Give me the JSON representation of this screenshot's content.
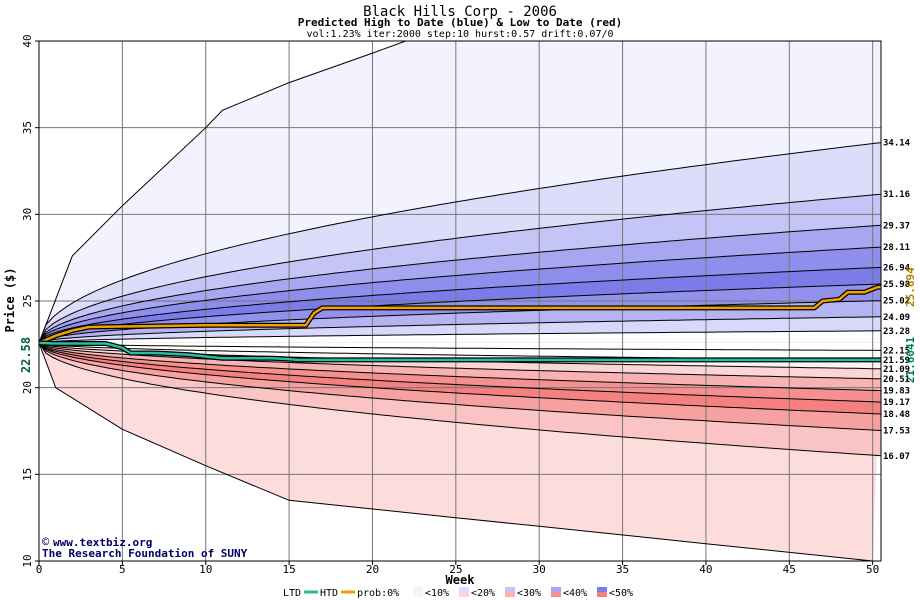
{
  "chart_data": {
    "type": "area",
    "title": "Black Hills Corp - 2006",
    "subtitle": "Predicted High to Date (blue) &  Low to Date (red)",
    "params": "vol:1.23% iter:2000 step:10 hurst:0.57 drift:0.07/0",
    "xlabel": "Week",
    "ylabel": "Price ($)",
    "xlim": [
      0,
      50.5
    ],
    "ylim": [
      10,
      40
    ],
    "x_ticks": [
      0,
      5,
      10,
      15,
      20,
      25,
      30,
      35,
      40,
      45,
      50
    ],
    "y_ticks": [
      10,
      15,
      20,
      25,
      30,
      35,
      40
    ],
    "grid": true,
    "start_price": 22.58,
    "start_label": "22.58",
    "upper_bands": [
      {
        "end": 34.14,
        "label": "34.14",
        "fill": "#f3f3ff"
      },
      {
        "end": 31.16,
        "label": "31.16",
        "fill": "#dcdcfb"
      },
      {
        "end": 29.37,
        "label": "29.37",
        "fill": "#c4c4f6"
      },
      {
        "end": 28.11,
        "label": "28.11",
        "fill": "#a6a6f1"
      },
      {
        "end": 26.94,
        "label": "26.94",
        "fill": "#8e8eec"
      },
      {
        "end": 25.98,
        "label": "25.98",
        "fill": "#7c7ce8"
      },
      {
        "end": 25.02,
        "label": "25.02",
        "fill": "#9292ed"
      },
      {
        "end": 24.09,
        "label": "24.09",
        "fill": "#b4b4f3"
      },
      {
        "end": 23.28,
        "label": "23.28",
        "fill": "#d8d8fa"
      },
      {
        "end": 22.15,
        "label": "22.15",
        "fill": "#ffffff"
      }
    ],
    "lower_bands": [
      {
        "end": 21.59,
        "label": "21.59",
        "fill": "#fff3f3"
      },
      {
        "end": 21.09,
        "label": "21.09",
        "fill": "#fcd6d6"
      },
      {
        "end": 20.51,
        "label": "20.51",
        "fill": "#f9b2b2"
      },
      {
        "end": 19.83,
        "label": "19.83",
        "fill": "#f69090"
      },
      {
        "end": 19.17,
        "label": "19.17",
        "fill": "#f48080"
      },
      {
        "end": 18.48,
        "label": "18.48",
        "fill": "#f7a0a0"
      },
      {
        "end": 17.53,
        "label": "17.53",
        "fill": "#fac4c4"
      },
      {
        "end": 16.07,
        "label": "16.07",
        "fill": "#fddcdc"
      }
    ],
    "outer_envelope": {
      "upper": [
        [
          0,
          22.58
        ],
        [
          2,
          27.6
        ],
        [
          5,
          30.5
        ],
        [
          10,
          35
        ],
        [
          11,
          36
        ],
        [
          15,
          37.6
        ],
        [
          20,
          39.3
        ],
        [
          22,
          40
        ]
      ],
      "lower": [
        [
          0,
          22.58
        ],
        [
          1,
          20
        ],
        [
          5,
          17.6
        ],
        [
          10,
          15.5
        ],
        [
          15,
          13.5
        ],
        [
          20,
          13
        ],
        [
          25,
          12.5
        ],
        [
          30,
          12
        ],
        [
          40,
          11
        ],
        [
          50,
          10
        ]
      ]
    },
    "series": [
      {
        "name": "HTD",
        "color": "#f0a000",
        "end_label": "25.694",
        "points": [
          [
            0,
            22.58
          ],
          [
            1,
            23.0
          ],
          [
            2,
            23.3
          ],
          [
            3,
            23.5
          ],
          [
            10,
            23.6
          ],
          [
            16,
            23.6
          ],
          [
            16.5,
            24.3
          ],
          [
            17,
            24.6
          ],
          [
            35,
            24.6
          ],
          [
            46.5,
            24.6
          ],
          [
            47,
            25.0
          ],
          [
            48,
            25.1
          ],
          [
            48.5,
            25.5
          ],
          [
            49.5,
            25.5
          ],
          [
            50.3,
            25.8
          ],
          [
            50.5,
            25.8
          ]
        ]
      },
      {
        "name": "LTD",
        "color": "#20c0a0",
        "end_label": "21.6041",
        "points": [
          [
            0,
            22.58
          ],
          [
            1,
            22.55
          ],
          [
            4,
            22.55
          ],
          [
            5,
            22.3
          ],
          [
            5.5,
            22.0
          ],
          [
            7,
            22.0
          ],
          [
            8,
            21.95
          ],
          [
            9,
            21.9
          ],
          [
            10,
            21.8
          ],
          [
            11,
            21.7
          ],
          [
            14,
            21.7
          ],
          [
            15,
            21.65
          ],
          [
            15.5,
            21.6
          ],
          [
            50.5,
            21.6
          ]
        ]
      }
    ],
    "legend": {
      "ltd": "LTD",
      "htd": "HTD",
      "prob_prefix": "prob:",
      "prob_first": "0%",
      "prob_items": [
        "<10%",
        "<20%",
        "<30%",
        "<40%",
        "<50%"
      ],
      "prob_colors": [
        "#ffffff",
        "#f3f3ff",
        "#dcdcfb",
        "#c4c4f6",
        "#a6a6f1",
        "#7c7ce8"
      ],
      "prob_colors_red": [
        "#ffffff",
        "#fff3f3",
        "#fcd6d6",
        "#f9b2b2",
        "#f69090",
        "#f48080"
      ]
    },
    "watermark": {
      "line1": "www.textbiz.org",
      "line2": "The Research Foundation of SUNY"
    }
  }
}
